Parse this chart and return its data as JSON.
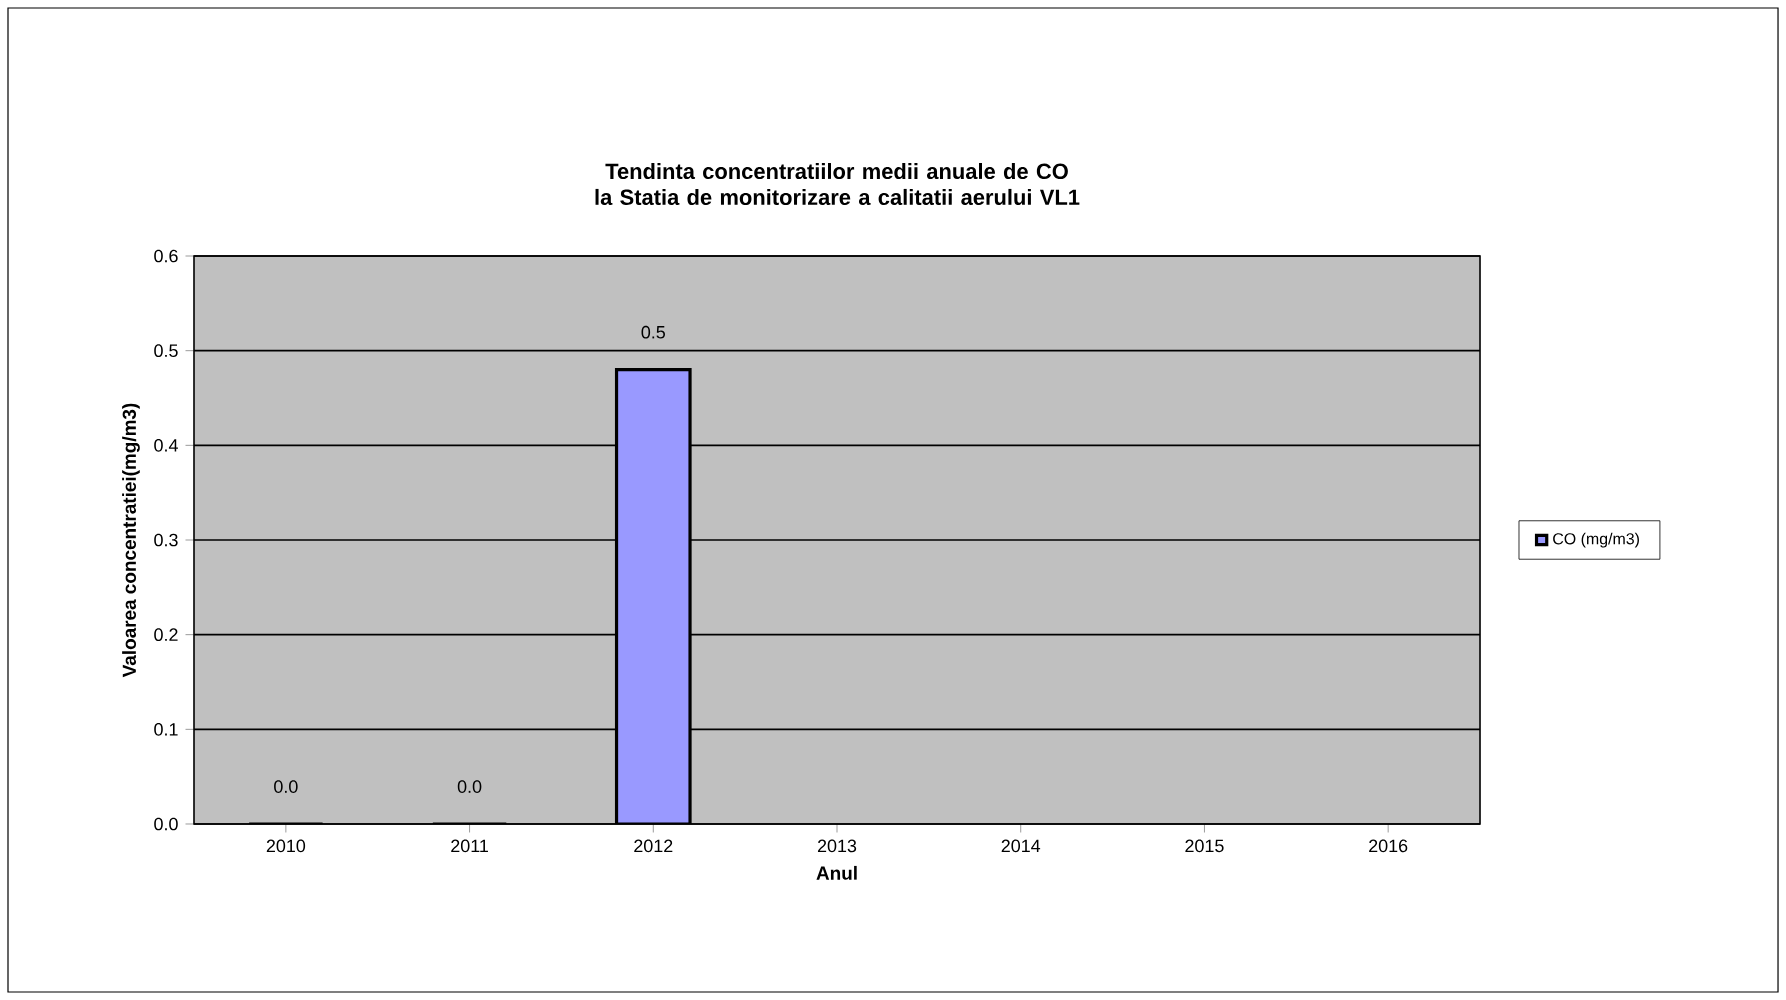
{
  "chart_data": {
    "type": "bar",
    "title": "Tendinta concentratiilor medii anuale de CO  la Statia de monitorizare a calitatii aerului VL1",
    "xlabel": "Anul",
    "ylabel": "Valoarea concentratiei(mg/m3)",
    "categories": [
      "2010",
      "2011",
      "2012",
      "2013",
      "2014",
      "2015",
      "2016"
    ],
    "series": [
      {
        "name": "CO  (mg/m3)",
        "color": "#9999ff",
        "values": [
          0,
          0,
          0.48,
          null,
          null,
          null,
          null
        ],
        "value_labels": [
          "0.0",
          "0.0",
          "0.5",
          null,
          null,
          null,
          null
        ]
      }
    ],
    "ylim": [
      0,
      0.6
    ],
    "yticks": [
      {
        "value": 0,
        "label": "0.0"
      },
      0.1,
      0.2,
      0.3,
      0.4,
      0.5,
      0.6
    ],
    "grid": "y",
    "legend": "right"
  }
}
